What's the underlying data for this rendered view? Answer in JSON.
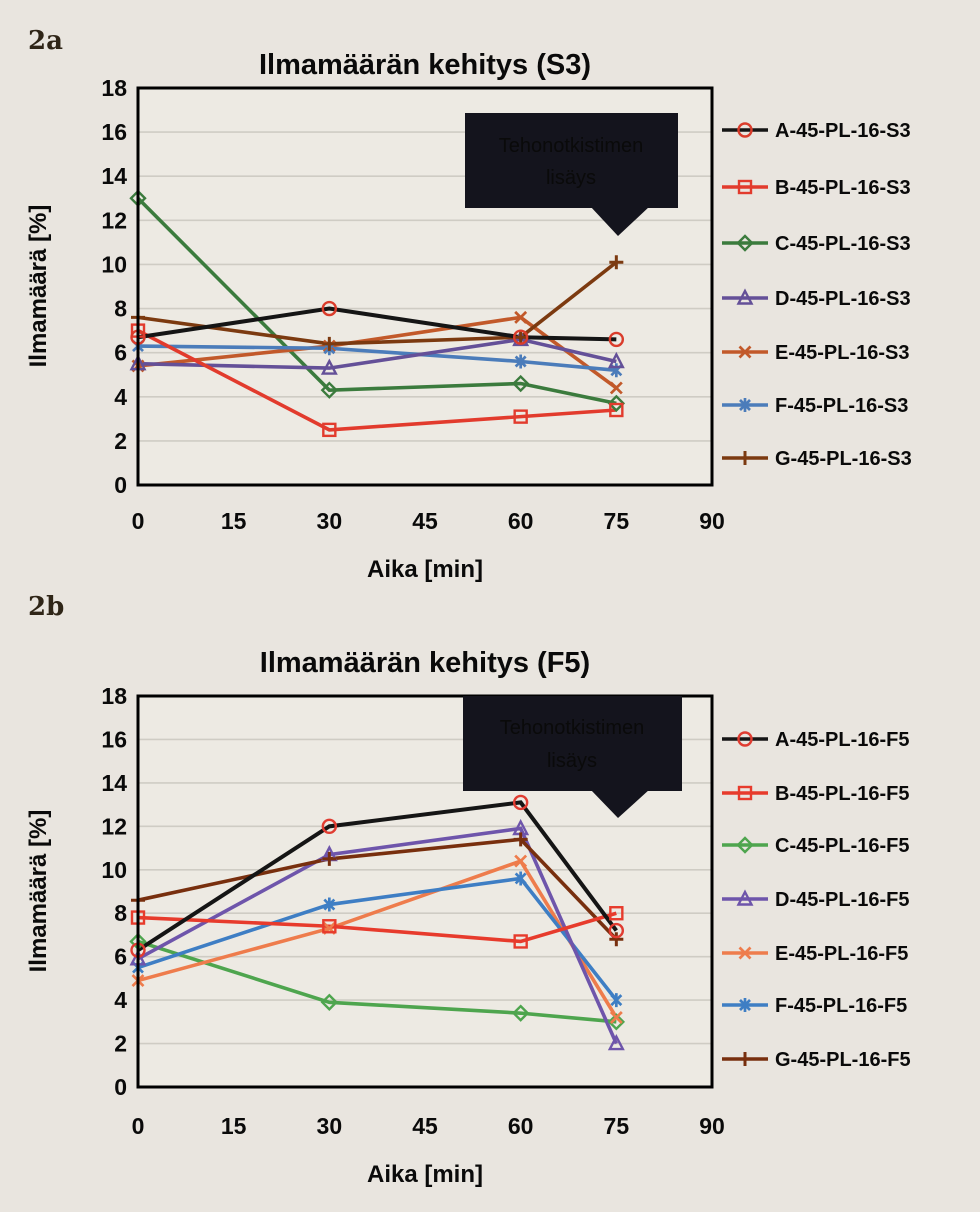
{
  "figure_labels": [
    "2a",
    "2b"
  ],
  "colors": {
    "page_bg": "#e9e5df",
    "plot_bg": "#edeae3",
    "grid": "#cfccc4",
    "axis": "#000000",
    "callout_bg": "#14141d",
    "callout_text": "#d8d5cf"
  },
  "chart_data": [
    {
      "type": "line",
      "title": "Ilmamäärän kehitys (S3)",
      "xlabel": "Aika [min]",
      "ylabel": "Ilmamäärä [%]",
      "annotation": {
        "text_line1": "Tehonotkistimen",
        "text_line2": "lisäys",
        "points_at_x": 75
      },
      "x": [
        0,
        30,
        60,
        75
      ],
      "xticks": [
        0,
        15,
        30,
        45,
        60,
        75,
        90
      ],
      "yticks": [
        0,
        2,
        4,
        6,
        8,
        10,
        12,
        14,
        16,
        18
      ],
      "xlim": [
        0,
        90
      ],
      "ylim": [
        0,
        18
      ],
      "grid": true,
      "legend_position": "right",
      "series": [
        {
          "name": "A-45-PL-16-S3",
          "marker": "circle",
          "line_color": "#151515",
          "marker_color": "#da3c2b",
          "values": [
            6.7,
            8.0,
            6.7,
            6.6
          ]
        },
        {
          "name": "B-45-PL-16-S3",
          "marker": "square",
          "line_color": "#e23b2d",
          "marker_color": "#e23b2d",
          "values": [
            7.0,
            2.5,
            3.1,
            3.4
          ]
        },
        {
          "name": "C-45-PL-16-S3",
          "marker": "diamond",
          "line_color": "#3b7b3d",
          "marker_color": "#3b7b3d",
          "values": [
            13.0,
            4.3,
            4.6,
            3.7
          ]
        },
        {
          "name": "D-45-PL-16-S3",
          "marker": "triangle",
          "line_color": "#645098",
          "marker_color": "#645098",
          "values": [
            5.5,
            5.3,
            6.6,
            5.6
          ]
        },
        {
          "name": "E-45-PL-16-S3",
          "marker": "x",
          "line_color": "#c2592a",
          "marker_color": "#c2592a",
          "values": [
            5.4,
            6.3,
            7.6,
            4.4
          ]
        },
        {
          "name": "F-45-PL-16-S3",
          "marker": "asterisk",
          "line_color": "#4b7cba",
          "marker_color": "#4b7cba",
          "values": [
            6.3,
            6.2,
            5.6,
            5.2
          ]
        },
        {
          "name": "G-45-PL-16-S3",
          "marker": "plus",
          "line_color": "#7c3a10",
          "marker_color": "#7c3a10",
          "values": [
            7.6,
            6.4,
            6.7,
            10.1
          ]
        }
      ]
    },
    {
      "type": "line",
      "title": "Ilmamäärän kehitys (F5)",
      "xlabel": "Aika [min]",
      "ylabel": "Ilmamäärä [%]",
      "annotation": {
        "text_line1": "Tehonotkistimen",
        "text_line2": "lisäys",
        "points_at_x": 75
      },
      "x": [
        0,
        30,
        60,
        75
      ],
      "xticks": [
        0,
        15,
        30,
        45,
        60,
        75,
        90
      ],
      "yticks": [
        0,
        2,
        4,
        6,
        8,
        10,
        12,
        14,
        16,
        18
      ],
      "xlim": [
        0,
        90
      ],
      "ylim": [
        0,
        18
      ],
      "grid": true,
      "legend_position": "right",
      "series": [
        {
          "name": "A-45-PL-16-F5",
          "marker": "circle",
          "line_color": "#151515",
          "marker_color": "#e03c31",
          "values": [
            6.3,
            12.0,
            13.1,
            7.2
          ]
        },
        {
          "name": "B-45-PL-16-F5",
          "marker": "square",
          "line_color": "#e73b2c",
          "marker_color": "#e73b2c",
          "values": [
            7.8,
            7.4,
            6.7,
            8.0
          ]
        },
        {
          "name": "C-45-PL-16-F5",
          "marker": "diamond",
          "line_color": "#4ea54e",
          "marker_color": "#4ea54e",
          "values": [
            6.7,
            3.9,
            3.4,
            3.0
          ]
        },
        {
          "name": "D-45-PL-16-F5",
          "marker": "triangle",
          "line_color": "#6e55ab",
          "marker_color": "#6e55ab",
          "values": [
            5.9,
            10.7,
            11.9,
            2.0
          ]
        },
        {
          "name": "E-45-PL-16-F5",
          "marker": "x",
          "line_color": "#ee7c4c",
          "marker_color": "#ee7c4c",
          "values": [
            4.9,
            7.3,
            10.4,
            3.2
          ]
        },
        {
          "name": "F-45-PL-16-F5",
          "marker": "asterisk",
          "line_color": "#3e7ec4",
          "marker_color": "#3e7ec4",
          "values": [
            5.5,
            8.4,
            9.6,
            4.0
          ]
        },
        {
          "name": "G-45-PL-16-F5",
          "marker": "plus",
          "line_color": "#782f0e",
          "marker_color": "#782f0e",
          "values": [
            8.6,
            10.5,
            11.4,
            6.8
          ]
        }
      ]
    }
  ]
}
